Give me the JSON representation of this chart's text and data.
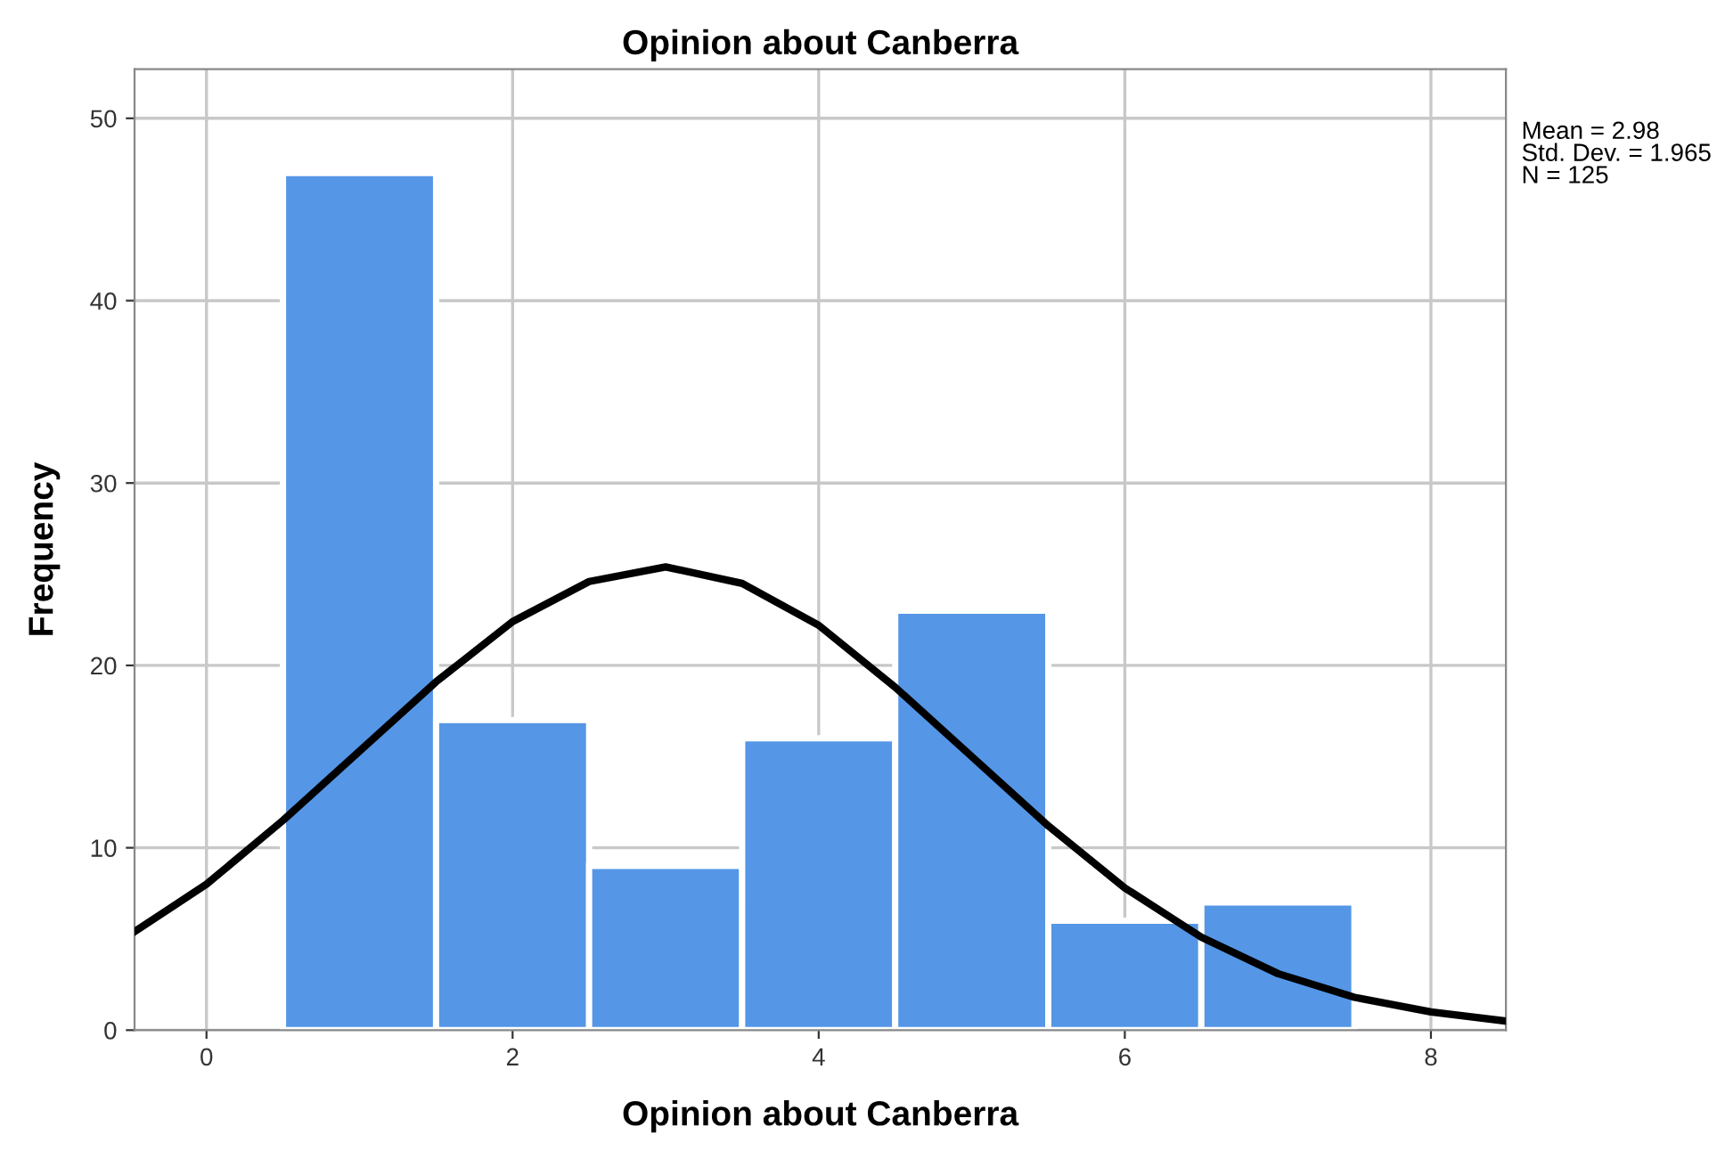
{
  "chart_data": {
    "type": "histogram",
    "title": "Opinion about Canberra",
    "xlabel": "Opinion about Canberra",
    "ylabel": "Frequency",
    "bins": [
      0.5,
      1.5,
      2.5,
      3.5,
      4.5,
      5.5,
      6.5,
      7.5
    ],
    "values": [
      47,
      17,
      9,
      16,
      23,
      6,
      7
    ],
    "color": "#5596e6",
    "series": [
      {
        "type": "line",
        "color": "#000000",
        "x": [
          -0.47,
          0,
          0.5,
          1,
          1.5,
          2,
          2.5,
          3,
          3.5,
          4,
          4.5,
          5,
          5.5,
          6,
          6.5,
          7,
          7.5,
          8,
          8.49
        ],
        "values": [
          5.4,
          8.0,
          11.5,
          15.3,
          19.1,
          22.4,
          24.6,
          25.4,
          24.5,
          22.2,
          18.8,
          15.0,
          11.2,
          7.8,
          5.1,
          3.1,
          1.8,
          1.0,
          0.5
        ]
      }
    ],
    "xlim": [
      -0.47,
      8.49
    ],
    "ylim": [
      0,
      52.7
    ],
    "xticks": [
      0,
      2,
      4,
      6,
      8
    ],
    "yticks": [
      0,
      10,
      20,
      30,
      40,
      50
    ],
    "grid": true,
    "annotations": [
      "Mean = 2.98\nStd. Dev. = 1.965\nN = 125"
    ]
  }
}
